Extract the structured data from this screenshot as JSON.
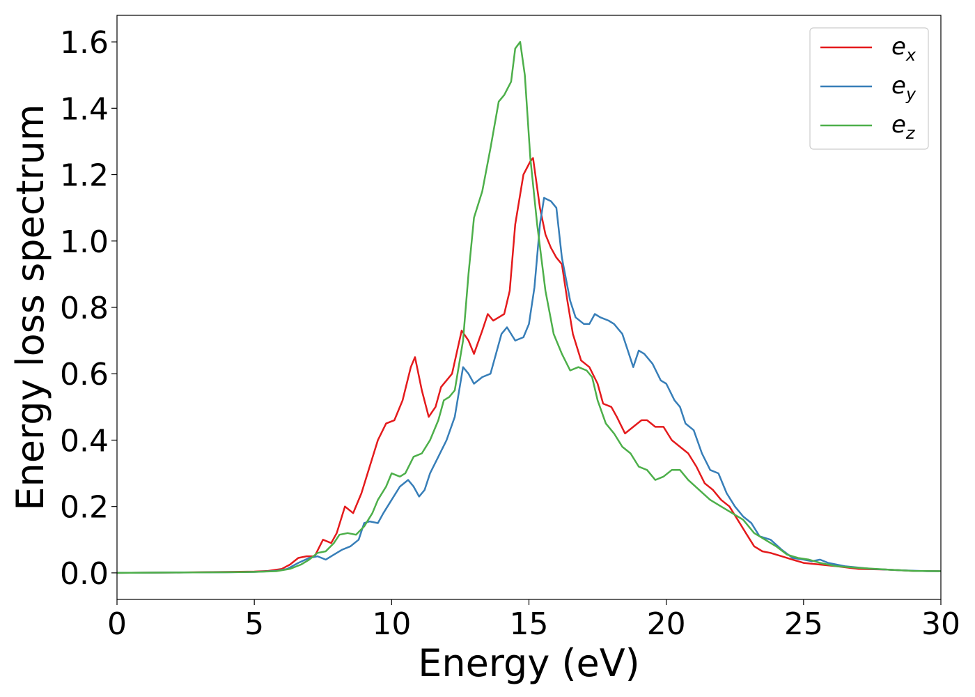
{
  "chart_data": {
    "type": "line",
    "xlabel": "Energy (eV)",
    "ylabel": "Energy loss spectrum",
    "xlim": [
      0,
      30
    ],
    "ylim": [
      -0.08,
      1.68
    ],
    "xticks": [
      0,
      5,
      10,
      15,
      20,
      25,
      30
    ],
    "yticks": [
      0.0,
      0.2,
      0.4,
      0.6,
      0.8,
      1.0,
      1.2,
      1.4,
      1.6
    ],
    "xtick_labels": [
      "0",
      "5",
      "10",
      "15",
      "20",
      "25",
      "30"
    ],
    "ytick_labels": [
      "0.0",
      "0.2",
      "0.4",
      "0.6",
      "0.8",
      "1.0",
      "1.2",
      "1.4",
      "1.6"
    ],
    "grid": false,
    "legend_position": "top-right",
    "series": [
      {
        "name": "e",
        "subscript": "x",
        "color": "#e41a1c",
        "points": [
          [
            0,
            0.0
          ],
          [
            2,
            0.001
          ],
          [
            4,
            0.003
          ],
          [
            5,
            0.004
          ],
          [
            5.5,
            0.006
          ],
          [
            6,
            0.012
          ],
          [
            6.3,
            0.025
          ],
          [
            6.6,
            0.045
          ],
          [
            6.9,
            0.05
          ],
          [
            7.2,
            0.05
          ],
          [
            7.5,
            0.1
          ],
          [
            7.8,
            0.09
          ],
          [
            8.0,
            0.12
          ],
          [
            8.3,
            0.2
          ],
          [
            8.6,
            0.18
          ],
          [
            8.9,
            0.24
          ],
          [
            9.2,
            0.32
          ],
          [
            9.5,
            0.4
          ],
          [
            9.8,
            0.45
          ],
          [
            10.1,
            0.46
          ],
          [
            10.4,
            0.52
          ],
          [
            10.7,
            0.62
          ],
          [
            10.85,
            0.65
          ],
          [
            11.1,
            0.55
          ],
          [
            11.35,
            0.47
          ],
          [
            11.6,
            0.5
          ],
          [
            11.8,
            0.56
          ],
          [
            12.0,
            0.58
          ],
          [
            12.2,
            0.6
          ],
          [
            12.55,
            0.73
          ],
          [
            12.8,
            0.7
          ],
          [
            13.0,
            0.66
          ],
          [
            13.3,
            0.73
          ],
          [
            13.5,
            0.78
          ],
          [
            13.7,
            0.76
          ],
          [
            13.9,
            0.77
          ],
          [
            14.1,
            0.78
          ],
          [
            14.3,
            0.85
          ],
          [
            14.5,
            1.05
          ],
          [
            14.8,
            1.2
          ],
          [
            15.05,
            1.24
          ],
          [
            15.15,
            1.25
          ],
          [
            15.4,
            1.1
          ],
          [
            15.6,
            1.02
          ],
          [
            15.8,
            0.98
          ],
          [
            16.0,
            0.95
          ],
          [
            16.2,
            0.93
          ],
          [
            16.4,
            0.82
          ],
          [
            16.6,
            0.72
          ],
          [
            16.9,
            0.64
          ],
          [
            17.2,
            0.62
          ],
          [
            17.5,
            0.57
          ],
          [
            17.7,
            0.51
          ],
          [
            18.0,
            0.5
          ],
          [
            18.2,
            0.47
          ],
          [
            18.5,
            0.42
          ],
          [
            18.8,
            0.44
          ],
          [
            19.1,
            0.46
          ],
          [
            19.3,
            0.46
          ],
          [
            19.6,
            0.44
          ],
          [
            19.9,
            0.44
          ],
          [
            20.2,
            0.4
          ],
          [
            20.5,
            0.38
          ],
          [
            20.8,
            0.36
          ],
          [
            21.1,
            0.32
          ],
          [
            21.4,
            0.27
          ],
          [
            21.7,
            0.25
          ],
          [
            22.0,
            0.22
          ],
          [
            22.3,
            0.2
          ],
          [
            22.6,
            0.16
          ],
          [
            22.9,
            0.12
          ],
          [
            23.2,
            0.08
          ],
          [
            23.5,
            0.065
          ],
          [
            23.8,
            0.06
          ],
          [
            24.2,
            0.05
          ],
          [
            24.6,
            0.04
          ],
          [
            25.0,
            0.03
          ],
          [
            25.6,
            0.025
          ],
          [
            26.2,
            0.02
          ],
          [
            27,
            0.012
          ],
          [
            28,
            0.01
          ],
          [
            29,
            0.006
          ],
          [
            30,
            0.005
          ]
        ]
      },
      {
        "name": "e",
        "subscript": "y",
        "color": "#377eb8",
        "points": [
          [
            0,
            0.0
          ],
          [
            2,
            0.001
          ],
          [
            4,
            0.002
          ],
          [
            5,
            0.003
          ],
          [
            5.8,
            0.006
          ],
          [
            6.2,
            0.012
          ],
          [
            6.6,
            0.03
          ],
          [
            7.0,
            0.045
          ],
          [
            7.3,
            0.05
          ],
          [
            7.6,
            0.04
          ],
          [
            7.9,
            0.055
          ],
          [
            8.2,
            0.07
          ],
          [
            8.5,
            0.08
          ],
          [
            8.8,
            0.1
          ],
          [
            9.0,
            0.15
          ],
          [
            9.2,
            0.155
          ],
          [
            9.5,
            0.15
          ],
          [
            9.7,
            0.18
          ],
          [
            10.0,
            0.22
          ],
          [
            10.3,
            0.26
          ],
          [
            10.6,
            0.28
          ],
          [
            10.8,
            0.26
          ],
          [
            11.0,
            0.23
          ],
          [
            11.2,
            0.25
          ],
          [
            11.4,
            0.3
          ],
          [
            11.7,
            0.35
          ],
          [
            12.0,
            0.4
          ],
          [
            12.3,
            0.47
          ],
          [
            12.6,
            0.62
          ],
          [
            12.8,
            0.6
          ],
          [
            13.0,
            0.57
          ],
          [
            13.3,
            0.59
          ],
          [
            13.6,
            0.6
          ],
          [
            13.8,
            0.66
          ],
          [
            14.0,
            0.72
          ],
          [
            14.2,
            0.74
          ],
          [
            14.5,
            0.7
          ],
          [
            14.8,
            0.71
          ],
          [
            15.0,
            0.75
          ],
          [
            15.2,
            0.86
          ],
          [
            15.4,
            1.05
          ],
          [
            15.55,
            1.13
          ],
          [
            15.8,
            1.12
          ],
          [
            16.0,
            1.1
          ],
          [
            16.2,
            0.95
          ],
          [
            16.5,
            0.82
          ],
          [
            16.7,
            0.77
          ],
          [
            17.0,
            0.75
          ],
          [
            17.2,
            0.75
          ],
          [
            17.4,
            0.78
          ],
          [
            17.6,
            0.77
          ],
          [
            17.9,
            0.76
          ],
          [
            18.1,
            0.75
          ],
          [
            18.4,
            0.72
          ],
          [
            18.6,
            0.67
          ],
          [
            18.8,
            0.62
          ],
          [
            19.0,
            0.67
          ],
          [
            19.2,
            0.66
          ],
          [
            19.5,
            0.63
          ],
          [
            19.8,
            0.58
          ],
          [
            20.0,
            0.57
          ],
          [
            20.3,
            0.52
          ],
          [
            20.5,
            0.5
          ],
          [
            20.7,
            0.45
          ],
          [
            21.0,
            0.43
          ],
          [
            21.3,
            0.36
          ],
          [
            21.6,
            0.31
          ],
          [
            21.9,
            0.3
          ],
          [
            22.2,
            0.24
          ],
          [
            22.5,
            0.2
          ],
          [
            22.8,
            0.17
          ],
          [
            23.1,
            0.15
          ],
          [
            23.4,
            0.11
          ],
          [
            23.8,
            0.1
          ],
          [
            24.2,
            0.07
          ],
          [
            24.6,
            0.045
          ],
          [
            25.0,
            0.04
          ],
          [
            25.3,
            0.035
          ],
          [
            25.6,
            0.04
          ],
          [
            25.9,
            0.03
          ],
          [
            26.5,
            0.02
          ],
          [
            27.5,
            0.012
          ],
          [
            28.5,
            0.008
          ],
          [
            29.5,
            0.005
          ],
          [
            30,
            0.005
          ]
        ]
      },
      {
        "name": "e",
        "subscript": "z",
        "color": "#4daf4a",
        "points": [
          [
            0,
            0.0
          ],
          [
            2,
            0.001
          ],
          [
            4,
            0.002
          ],
          [
            5,
            0.003
          ],
          [
            5.8,
            0.005
          ],
          [
            6.3,
            0.012
          ],
          [
            6.7,
            0.025
          ],
          [
            7.0,
            0.04
          ],
          [
            7.3,
            0.06
          ],
          [
            7.6,
            0.065
          ],
          [
            7.9,
            0.09
          ],
          [
            8.1,
            0.115
          ],
          [
            8.4,
            0.12
          ],
          [
            8.7,
            0.115
          ],
          [
            9.0,
            0.14
          ],
          [
            9.3,
            0.18
          ],
          [
            9.5,
            0.22
          ],
          [
            9.8,
            0.26
          ],
          [
            10.0,
            0.3
          ],
          [
            10.3,
            0.29
          ],
          [
            10.5,
            0.3
          ],
          [
            10.8,
            0.35
          ],
          [
            11.1,
            0.36
          ],
          [
            11.4,
            0.4
          ],
          [
            11.7,
            0.46
          ],
          [
            11.9,
            0.52
          ],
          [
            12.1,
            0.53
          ],
          [
            12.3,
            0.55
          ],
          [
            12.6,
            0.7
          ],
          [
            12.8,
            0.9
          ],
          [
            13.0,
            1.07
          ],
          [
            13.3,
            1.15
          ],
          [
            13.6,
            1.28
          ],
          [
            13.9,
            1.42
          ],
          [
            14.1,
            1.44
          ],
          [
            14.35,
            1.48
          ],
          [
            14.5,
            1.58
          ],
          [
            14.68,
            1.6
          ],
          [
            14.85,
            1.5
          ],
          [
            15.05,
            1.25
          ],
          [
            15.3,
            1.05
          ],
          [
            15.6,
            0.85
          ],
          [
            15.9,
            0.72
          ],
          [
            16.2,
            0.66
          ],
          [
            16.5,
            0.61
          ],
          [
            16.8,
            0.62
          ],
          [
            17.1,
            0.61
          ],
          [
            17.3,
            0.59
          ],
          [
            17.5,
            0.52
          ],
          [
            17.8,
            0.45
          ],
          [
            18.1,
            0.42
          ],
          [
            18.4,
            0.38
          ],
          [
            18.7,
            0.36
          ],
          [
            19.0,
            0.32
          ],
          [
            19.3,
            0.31
          ],
          [
            19.6,
            0.28
          ],
          [
            19.9,
            0.29
          ],
          [
            20.2,
            0.31
          ],
          [
            20.5,
            0.31
          ],
          [
            20.8,
            0.28
          ],
          [
            21.2,
            0.25
          ],
          [
            21.6,
            0.22
          ],
          [
            22.0,
            0.2
          ],
          [
            22.4,
            0.18
          ],
          [
            22.8,
            0.16
          ],
          [
            23.2,
            0.12
          ],
          [
            23.6,
            0.1
          ],
          [
            24.0,
            0.08
          ],
          [
            24.4,
            0.055
          ],
          [
            24.8,
            0.045
          ],
          [
            25.2,
            0.04
          ],
          [
            25.6,
            0.03
          ],
          [
            26.2,
            0.02
          ],
          [
            27,
            0.015
          ],
          [
            28,
            0.01
          ],
          [
            29,
            0.006
          ],
          [
            30,
            0.005
          ]
        ]
      }
    ]
  }
}
